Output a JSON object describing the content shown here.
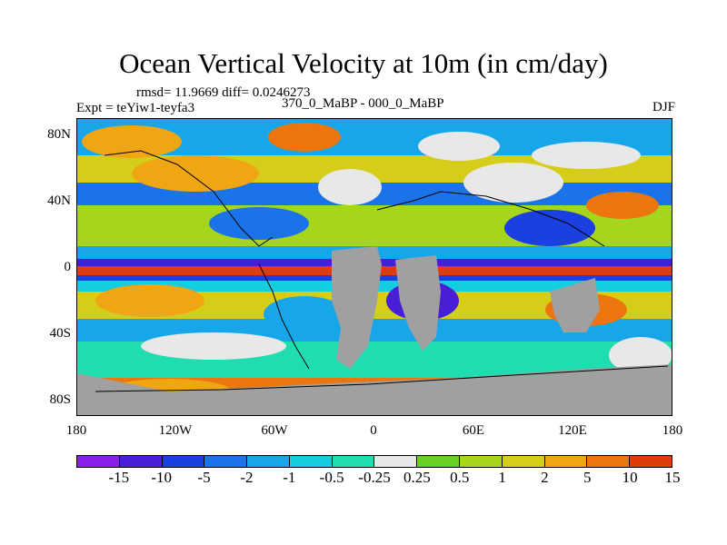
{
  "title": "Ocean Vertical Velocity at 10m (in cm/day)",
  "stats": "rmsd= 11.9669  diff= 0.0246273",
  "left_label": "Expt = teYiw1-teyfa3",
  "center_label": "370_0_MaBP - 000_0_MaBP",
  "right_label": "DJF",
  "y_ticks": [
    "80N",
    "40N",
    "0",
    "40S",
    "80S"
  ],
  "x_ticks": [
    "180",
    "120W",
    "60W",
    "0",
    "60E",
    "120E",
    "180"
  ],
  "colorbar": {
    "labels": [
      "-15",
      "-10",
      "-5",
      "-2",
      "-1",
      "-0.5",
      "-0.25",
      "0.25",
      "0.5",
      "1",
      "2",
      "5",
      "10",
      "15"
    ],
    "colors": [
      "#8a1fe8",
      "#4a1ed6",
      "#1b3fe0",
      "#1a73e8",
      "#17a6ea",
      "#16cde0",
      "#20ddb0",
      "#e8e8e8",
      "#66d024",
      "#a6d51e",
      "#d6cd18",
      "#f0a512",
      "#ec760e",
      "#e03c0a"
    ],
    "land_color": "#a0a0a0"
  }
}
